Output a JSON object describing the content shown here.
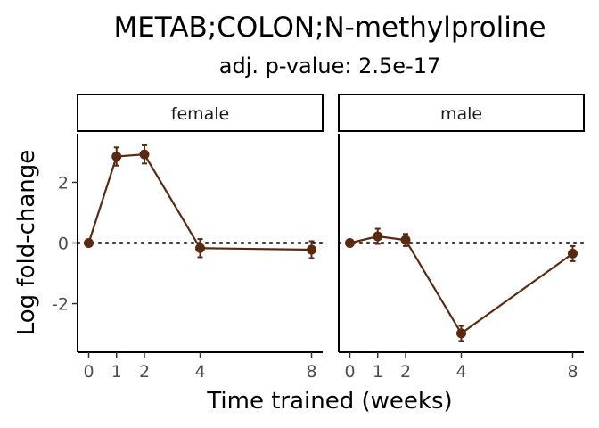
{
  "chart_data": {
    "type": "line",
    "title": "METAB;COLON;N-methylproline",
    "subtitle": "adj. p-value: 2.5e-17",
    "xlabel": "Time trained (weeks)",
    "ylabel": "Log fold-change",
    "x_ticks": [
      0,
      1,
      2,
      4,
      8
    ],
    "y_ticks": [
      -2,
      0,
      2
    ],
    "y_tick_labels": [
      "-2",
      "0",
      "2"
    ],
    "xlim": [
      -0.4,
      8.4
    ],
    "ylim": [
      -3.6,
      3.6
    ],
    "reference_line": {
      "y": 0,
      "style": "dotted"
    },
    "color": "#5a2a10",
    "grid": false,
    "panels": [
      {
        "label": "female",
        "x": [
          0,
          1,
          2,
          4,
          8
        ],
        "y": [
          0.0,
          2.85,
          2.92,
          -0.17,
          -0.22
        ],
        "err": [
          0.0,
          0.3,
          0.3,
          0.3,
          0.28
        ]
      },
      {
        "label": "male",
        "x": [
          0,
          1,
          2,
          4,
          8
        ],
        "y": [
          0.0,
          0.22,
          0.1,
          -2.98,
          -0.35
        ],
        "err": [
          0.0,
          0.25,
          0.2,
          0.25,
          0.25
        ]
      }
    ]
  }
}
